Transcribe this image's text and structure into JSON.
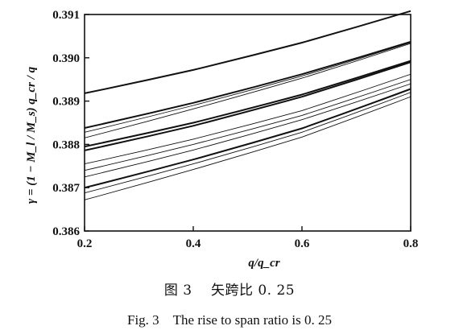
{
  "chart_data": {
    "type": "line",
    "title": "",
    "xlabel": "q/q_cr",
    "ylabel": "γ = (1 − M_l / M_s) q_cr / q",
    "xlim": [
      0.2,
      0.8
    ],
    "ylim": [
      0.386,
      0.391
    ],
    "xticks": [
      "0.2",
      "0.4",
      "0.6",
      "0.8"
    ],
    "yticks": [
      "0.386",
      "0.387",
      "0.388",
      "0.389",
      "0.390",
      "0.391"
    ],
    "grid": false,
    "series": [
      {
        "x": [
          0.2,
          0.4,
          0.6,
          0.8
        ],
        "y": [
          0.38918,
          0.38972,
          0.39035,
          0.39108
        ],
        "weight": "bold"
      },
      {
        "x": [
          0.2,
          0.4,
          0.6,
          0.8
        ],
        "y": [
          0.38838,
          0.38896,
          0.38962,
          0.39037
        ],
        "weight": "bold"
      },
      {
        "x": [
          0.2,
          0.4,
          0.6,
          0.8
        ],
        "y": [
          0.38828,
          0.3889,
          0.38958,
          0.39035
        ],
        "weight": "thin"
      },
      {
        "x": [
          0.2,
          0.4,
          0.6,
          0.8
        ],
        "y": [
          0.38815,
          0.38882,
          0.38953,
          0.39033
        ],
        "weight": "thin"
      },
      {
        "x": [
          0.2,
          0.4,
          0.6,
          0.8
        ],
        "y": [
          0.38795,
          0.3885,
          0.38915,
          0.38993
        ],
        "weight": "bold"
      },
      {
        "x": [
          0.2,
          0.4,
          0.6,
          0.8
        ],
        "y": [
          0.38786,
          0.38843,
          0.3891,
          0.3899
        ],
        "weight": "bold"
      },
      {
        "x": [
          0.2,
          0.4,
          0.6,
          0.8
        ],
        "y": [
          0.38755,
          0.38812,
          0.38878,
          0.38962
        ],
        "weight": "thin"
      },
      {
        "x": [
          0.2,
          0.4,
          0.6,
          0.8
        ],
        "y": [
          0.3874,
          0.388,
          0.38867,
          0.3895
        ],
        "weight": "thin"
      },
      {
        "x": [
          0.2,
          0.4,
          0.6,
          0.8
        ],
        "y": [
          0.38725,
          0.38787,
          0.38857,
          0.3894
        ],
        "weight": "thin"
      },
      {
        "x": [
          0.2,
          0.4,
          0.6,
          0.8
        ],
        "y": [
          0.387,
          0.38765,
          0.38837,
          0.38928
        ],
        "weight": "bold"
      },
      {
        "x": [
          0.2,
          0.4,
          0.6,
          0.8
        ],
        "y": [
          0.38688,
          0.38755,
          0.38828,
          0.3892
        ],
        "weight": "thin"
      },
      {
        "x": [
          0.2,
          0.4,
          0.6,
          0.8
        ],
        "y": [
          0.38672,
          0.38742,
          0.38817,
          0.3891
        ],
        "weight": "thin"
      }
    ]
  },
  "captions": {
    "chinese": "图 3　 矢跨比 0. 25",
    "english": "Fig. 3　The rise to span ratio is 0. 25"
  }
}
